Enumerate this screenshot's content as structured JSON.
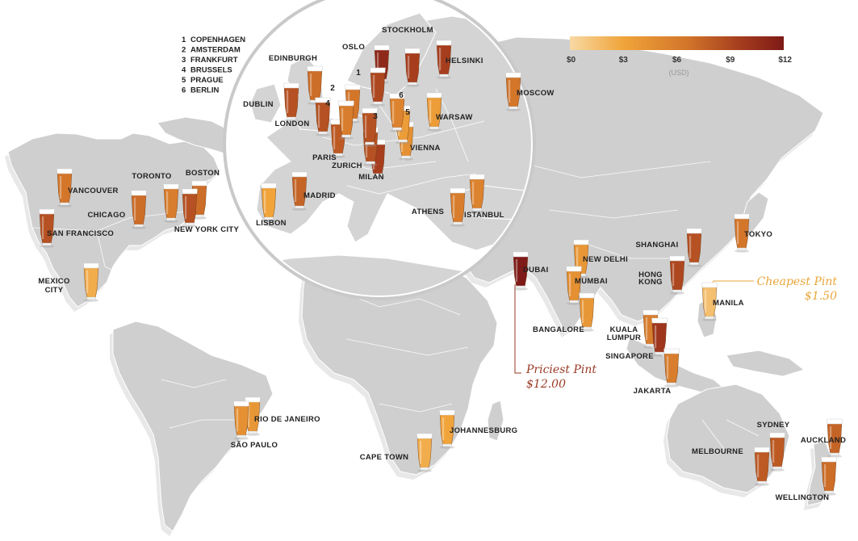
{
  "legend": {
    "colors": [
      "#f8d9a4",
      "#f0a43a",
      "#d2752a",
      "#a43c1e",
      "#7e1a17"
    ],
    "ticks": [
      "$0",
      "$3",
      "$6",
      "$9",
      "$12"
    ],
    "tick_values": [
      0,
      3,
      6,
      9,
      12
    ],
    "unit": "(USD)"
  },
  "key": {
    "items": [
      {
        "num": "1",
        "name": "COPENHAGEN"
      },
      {
        "num": "2",
        "name": "AMSTERDAM"
      },
      {
        "num": "3",
        "name": "FRANKFURT"
      },
      {
        "num": "4",
        "name": "BRUSSELS"
      },
      {
        "num": "5",
        "name": "PRAGUE"
      },
      {
        "num": "6",
        "name": "BERLIN"
      }
    ]
  },
  "callouts": {
    "cheapest": {
      "title": "Cheapest Pint",
      "price": "$1.50"
    },
    "priciest": {
      "title": "Priciest Pint",
      "price": "$12.00"
    }
  },
  "colors": {
    "land": "#cfcfcf",
    "land_shadow": "#e6e6e6",
    "border": "#ffffff",
    "magnifier": "#d4d4d4",
    "cheap_accent": "#e9a63a",
    "pricey_accent": "#9a3a26"
  },
  "chart_data": {
    "type": "map",
    "title": "",
    "value_unit": "USD",
    "color_scale_range": [
      0,
      12
    ],
    "cities": [
      {
        "name": "OSLO",
        "price": 11.0
      },
      {
        "name": "STOCKHOLM",
        "price": 9.5
      },
      {
        "name": "HELSINKI",
        "price": 9.5
      },
      {
        "name": "EDINBURGH",
        "price": 7.0
      },
      {
        "name": "DUBLIN",
        "price": 8.5
      },
      {
        "name": "LONDON",
        "price": 8.5
      },
      {
        "name": "MOSCOW",
        "price": 6.5
      },
      {
        "name": "WARSAW",
        "price": 3.5
      },
      {
        "name": "VIENNA",
        "price": 4.5
      },
      {
        "name": "PARIS",
        "price": 8.0
      },
      {
        "name": "ZURICH",
        "price": 9.5
      },
      {
        "name": "MILAN",
        "price": 8.5
      },
      {
        "name": "MADRID",
        "price": 7.5
      },
      {
        "name": "LISBON",
        "price": 3.0
      },
      {
        "name": "ATHENS",
        "price": 6.0
      },
      {
        "name": "ISTANBUL",
        "price": 5.5
      },
      {
        "name": "VANCOUVER",
        "price": 6.5
      },
      {
        "name": "TORONTO",
        "price": 6.0
      },
      {
        "name": "BOSTON",
        "price": 7.0
      },
      {
        "name": "CHICAGO",
        "price": 7.0
      },
      {
        "name": "NEW YORK CITY",
        "price": 8.5
      },
      {
        "name": "SAN FRANCISCO",
        "price": 8.5
      },
      {
        "name": "MEXICO CITY",
        "price": 2.5
      },
      {
        "name": "RIO DE JANEIRO",
        "price": 4.0
      },
      {
        "name": "SÃO PAULO",
        "price": 4.5
      },
      {
        "name": "CAPE TOWN",
        "price": 2.5
      },
      {
        "name": "JOHANNESBURG",
        "price": 3.0
      },
      {
        "name": "DUBAI",
        "price": 12.0
      },
      {
        "name": "NEW DELHI",
        "price": 4.0
      },
      {
        "name": "MUMBAI",
        "price": 4.5
      },
      {
        "name": "BANGALORE",
        "price": 4.0
      },
      {
        "name": "TOKYO",
        "price": 6.5
      },
      {
        "name": "SHANGHAI",
        "price": 8.5
      },
      {
        "name": "HONG KONG",
        "price": 9.0
      },
      {
        "name": "MANILA",
        "price": 1.5
      },
      {
        "name": "KUALA LUMPUR",
        "price": 6.0
      },
      {
        "name": "SINGAPORE",
        "price": 10.0
      },
      {
        "name": "JAKARTA",
        "price": 6.0
      },
      {
        "name": "SYDNEY",
        "price": 8.0
      },
      {
        "name": "MELBOURNE",
        "price": 8.0
      },
      {
        "name": "AUCKLAND",
        "price": 7.5
      },
      {
        "name": "WELLINGTON",
        "price": 7.0
      },
      {
        "name": "1",
        "price": 9.0
      },
      {
        "name": "2",
        "price": 6.5
      },
      {
        "name": "3",
        "price": 8.5
      },
      {
        "name": "4",
        "price": 6.0
      },
      {
        "name": "5",
        "price": 3.5
      },
      {
        "name": "6",
        "price": 5.5
      }
    ]
  }
}
